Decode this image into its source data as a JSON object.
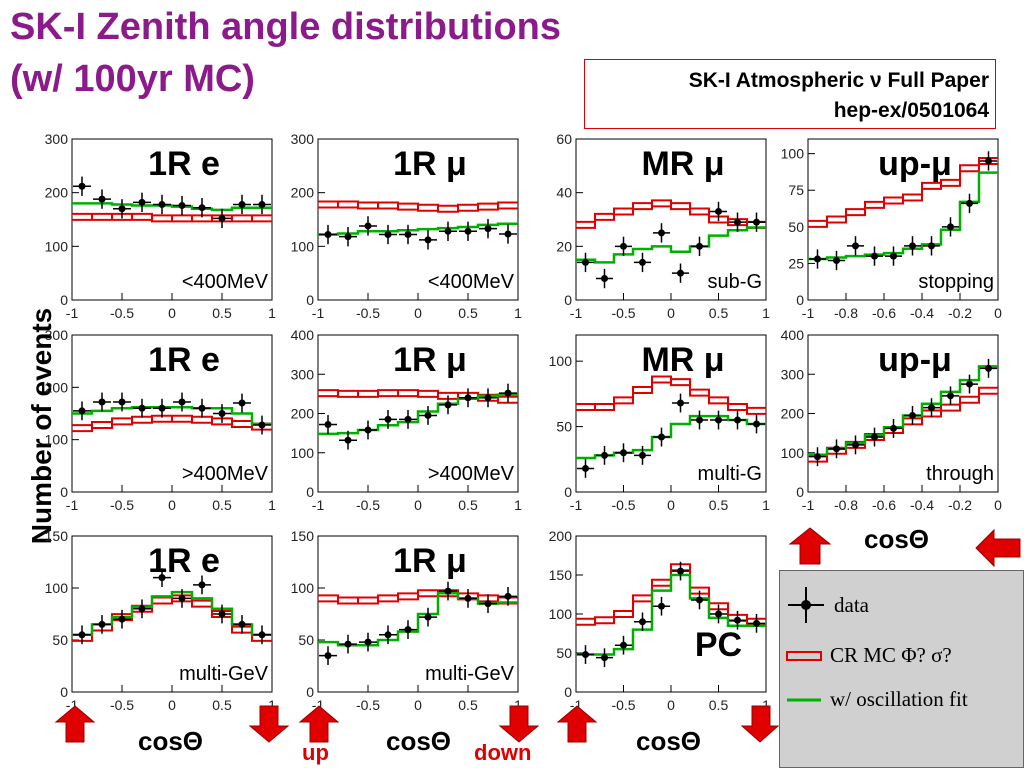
{
  "title": {
    "line1": "SK-I  Zenith angle distributions",
    "line2": "(w/ 100yr MC)"
  },
  "reference": {
    "line1": "SK-I Atmospheric ν Full Paper",
    "line2": "hep-ex/0501064"
  },
  "ylabel": "Number of events",
  "bottom_labels": {
    "cos": "cosΘ",
    "up": "up",
    "down": "down"
  },
  "legend": {
    "data": "data",
    "cr_mc": "CR MC Φ? σ?",
    "osc_fit": "w/ oscillation fit"
  },
  "colors": {
    "title": "#8b1a8b",
    "cr_mc": "#e00000",
    "osc_fit": "#00b000",
    "data": "#000000",
    "arrows": "#e00000"
  },
  "chart_data": [
    {
      "id": "p11",
      "type": "line",
      "title": "1R  e",
      "note": "<400MeV",
      "ylim": [
        0,
        300
      ],
      "yticks": [
        0,
        100,
        200,
        300
      ],
      "xlim": [
        -1,
        1
      ],
      "xticks": [
        "-1",
        "-0.5",
        "0",
        "0.5",
        "1"
      ],
      "x": [
        -0.9,
        -0.7,
        -0.5,
        -0.3,
        -0.1,
        0.1,
        0.3,
        0.5,
        0.7,
        0.9
      ],
      "series": [
        {
          "name": "data",
          "values": [
            212,
            188,
            170,
            182,
            178,
            176,
            172,
            152,
            178,
            178
          ]
        },
        {
          "name": "CR MC",
          "values": [
            155,
            155,
            155,
            155,
            152,
            152,
            152,
            152,
            152,
            152
          ]
        },
        {
          "name": "w/ oscillation fit",
          "values": [
            180,
            180,
            178,
            176,
            176,
            174,
            170,
            168,
            172,
            172
          ]
        }
      ]
    },
    {
      "id": "p12",
      "type": "line",
      "title": "1R μ",
      "note": "<400MeV",
      "ylim": [
        0,
        300
      ],
      "yticks": [
        0,
        100,
        200,
        300
      ],
      "xlim": [
        -1,
        1
      ],
      "xticks": [
        "-1",
        "-0.5",
        "0",
        "0.5",
        "1"
      ],
      "x": [
        -0.9,
        -0.7,
        -0.5,
        -0.3,
        -0.1,
        0.1,
        0.3,
        0.5,
        0.7,
        0.9
      ],
      "series": [
        {
          "name": "data",
          "values": [
            122,
            118,
            138,
            122,
            122,
            112,
            128,
            128,
            133,
            123
          ]
        },
        {
          "name": "CR MC",
          "values": [
            178,
            178,
            176,
            176,
            174,
            172,
            170,
            172,
            174,
            176
          ]
        },
        {
          "name": "w/ oscillation fit",
          "values": [
            122,
            124,
            128,
            128,
            130,
            132,
            134,
            136,
            140,
            142
          ]
        }
      ]
    },
    {
      "id": "p13",
      "type": "line",
      "title": "MR μ",
      "note": "sub-G",
      "ylim": [
        0,
        60
      ],
      "yticks": [
        0,
        20,
        40,
        60
      ],
      "xlim": [
        -1,
        1
      ],
      "xticks": [
        "-1",
        "-0.5",
        "0",
        "0.5",
        "1"
      ],
      "x": [
        -0.9,
        -0.7,
        -0.5,
        -0.3,
        -0.1,
        0.1,
        0.3,
        0.5,
        0.7,
        0.9
      ],
      "series": [
        {
          "name": "data",
          "values": [
            14,
            8,
            20,
            14,
            25,
            10,
            20,
            33,
            29,
            29
          ]
        },
        {
          "name": "CR MC",
          "values": [
            28,
            31,
            33,
            35,
            36,
            35,
            33,
            30,
            29,
            28
          ]
        },
        {
          "name": "w/ oscillation fit",
          "values": [
            15,
            14,
            17,
            19,
            20,
            18,
            20,
            24,
            26,
            27
          ]
        }
      ]
    },
    {
      "id": "p14",
      "type": "line",
      "title": "up-μ",
      "note": "stopping",
      "ylim": [
        0,
        110
      ],
      "yticks": [
        0,
        25,
        50,
        75,
        100
      ],
      "xlim": [
        -1,
        0
      ],
      "xticks": [
        "-1",
        "-0.8",
        "-0.6",
        "-0.4",
        "-0.2",
        "0"
      ],
      "x": [
        -0.95,
        -0.85,
        -0.75,
        -0.65,
        -0.55,
        -0.45,
        -0.35,
        -0.25,
        -0.15,
        -0.05
      ],
      "series": [
        {
          "name": "data",
          "values": [
            28,
            27,
            37,
            30,
            30,
            37,
            37,
            50,
            66,
            95
          ]
        },
        {
          "name": "CR MC",
          "values": [
            52,
            55,
            60,
            65,
            68,
            70,
            78,
            80,
            90,
            95
          ]
        },
        {
          "name": "w/ oscillation fit",
          "values": [
            28,
            29,
            30,
            31,
            32,
            35,
            38,
            48,
            67,
            87
          ]
        }
      ]
    },
    {
      "id": "p21",
      "type": "line",
      "title": "1R  e",
      "note": ">400MeV",
      "ylim": [
        0,
        300
      ],
      "yticks": [
        0,
        100,
        200,
        300
      ],
      "xlim": [
        -1,
        1
      ],
      "xticks": [
        "-1",
        "-0.5",
        "0",
        "0.5",
        "1"
      ],
      "x": [
        -0.9,
        -0.7,
        -0.5,
        -0.3,
        -0.1,
        0.1,
        0.3,
        0.5,
        0.7,
        0.9
      ],
      "series": [
        {
          "name": "data",
          "values": [
            155,
            172,
            172,
            160,
            160,
            172,
            160,
            150,
            170,
            128
          ]
        },
        {
          "name": "CR MC",
          "values": [
            122,
            128,
            135,
            138,
            140,
            140,
            138,
            135,
            130,
            125
          ]
        },
        {
          "name": "w/ oscillation fit",
          "values": [
            150,
            155,
            160,
            162,
            162,
            162,
            160,
            160,
            150,
            130
          ]
        }
      ]
    },
    {
      "id": "p22",
      "type": "line",
      "title": "1R μ",
      "note": ">400MeV",
      "ylim": [
        0,
        400
      ],
      "yticks": [
        0,
        100,
        200,
        300,
        400
      ],
      "xlim": [
        -1,
        1
      ],
      "xticks": [
        "-1",
        "-0.5",
        "0",
        "0.5",
        "1"
      ],
      "x": [
        -0.9,
        -0.7,
        -0.5,
        -0.3,
        -0.1,
        0.1,
        0.3,
        0.5,
        0.7,
        0.9
      ],
      "series": [
        {
          "name": "data",
          "values": [
            172,
            132,
            158,
            185,
            185,
            195,
            222,
            240,
            240,
            252
          ]
        },
        {
          "name": "CR MC",
          "values": [
            252,
            250,
            250,
            252,
            252,
            250,
            245,
            245,
            240,
            235
          ]
        },
        {
          "name": "w/ oscillation fit",
          "values": [
            148,
            150,
            158,
            170,
            178,
            205,
            225,
            238,
            245,
            248
          ]
        }
      ]
    },
    {
      "id": "p23",
      "type": "line",
      "title": "MR μ",
      "note": "multi-G",
      "ylim": [
        0,
        120
      ],
      "yticks": [
        0,
        50,
        100
      ],
      "xlim": [
        -1,
        1
      ],
      "xticks": [
        "-1",
        "-0.5",
        "0",
        "0.5",
        "1"
      ],
      "x": [
        -0.9,
        -0.7,
        -0.5,
        -0.3,
        -0.1,
        0.1,
        0.3,
        0.5,
        0.7,
        0.9
      ],
      "series": [
        {
          "name": "data",
          "values": [
            18,
            28,
            30,
            28,
            42,
            68,
            55,
            55,
            55,
            52
          ]
        },
        {
          "name": "CR MC",
          "values": [
            65,
            65,
            70,
            78,
            86,
            84,
            76,
            70,
            65,
            62
          ]
        },
        {
          "name": "w/ oscillation fit",
          "values": [
            26,
            28,
            30,
            32,
            42,
            52,
            58,
            58,
            55,
            52
          ]
        }
      ]
    },
    {
      "id": "p24",
      "type": "line",
      "title": "up-μ",
      "note": "through",
      "ylim": [
        0,
        400
      ],
      "yticks": [
        0,
        100,
        200,
        300,
        400
      ],
      "xlim": [
        -1,
        0
      ],
      "xticks": [
        "-1",
        "-0.8",
        "-0.6",
        "-0.4",
        "-0.2",
        "0"
      ],
      "x": [
        -0.95,
        -0.85,
        -0.75,
        -0.65,
        -0.55,
        -0.45,
        -0.35,
        -0.25,
        -0.15,
        -0.05
      ],
      "series": [
        {
          "name": "data",
          "values": [
            90,
            110,
            120,
            140,
            162,
            195,
            215,
            245,
            275,
            315
          ]
        },
        {
          "name": "CR MC",
          "values": [
            85,
            105,
            120,
            140,
            158,
            180,
            200,
            215,
            235,
            258
          ]
        },
        {
          "name": "w/ oscillation fit",
          "values": [
            95,
            110,
            125,
            145,
            165,
            195,
            225,
            255,
            285,
            320
          ]
        }
      ]
    },
    {
      "id": "p31",
      "type": "line",
      "title": "1R  e",
      "note": "multi-GeV",
      "ylim": [
        0,
        150
      ],
      "yticks": [
        0,
        50,
        100,
        150
      ],
      "xlim": [
        -1,
        1
      ],
      "xticks": [
        "-1",
        "-0.5",
        "0",
        "0.5",
        "1"
      ],
      "x": [
        -0.9,
        -0.7,
        -0.5,
        -0.3,
        -0.1,
        0.1,
        0.3,
        0.5,
        0.7,
        0.9
      ],
      "series": [
        {
          "name": "data",
          "values": [
            55,
            65,
            70,
            80,
            110,
            90,
            103,
            75,
            65,
            55
          ]
        },
        {
          "name": "CR MC",
          "values": [
            52,
            62,
            72,
            80,
            88,
            90,
            85,
            75,
            60,
            52
          ]
        },
        {
          "name": "w/ oscillation fit",
          "values": [
            55,
            65,
            72,
            82,
            92,
            96,
            90,
            80,
            65,
            55
          ]
        }
      ]
    },
    {
      "id": "p32",
      "type": "line",
      "title": "1R μ",
      "note": "multi-GeV",
      "ylim": [
        0,
        150
      ],
      "yticks": [
        0,
        50,
        100,
        150
      ],
      "xlim": [
        -1,
        1
      ],
      "xticks": [
        "-1",
        "-0.5",
        "0",
        "0.5",
        "1"
      ],
      "x": [
        -0.9,
        -0.7,
        -0.5,
        -0.3,
        -0.1,
        0.1,
        0.3,
        0.5,
        0.7,
        0.9
      ],
      "series": [
        {
          "name": "data",
          "values": [
            35,
            46,
            48,
            55,
            60,
            72,
            97,
            90,
            85,
            92
          ]
        },
        {
          "name": "CR MC",
          "values": [
            90,
            88,
            88,
            90,
            92,
            95,
            95,
            92,
            90,
            88
          ]
        },
        {
          "name": "w/ oscillation fit",
          "values": [
            48,
            45,
            45,
            50,
            58,
            75,
            95,
            90,
            85,
            86
          ]
        }
      ]
    },
    {
      "id": "p33",
      "type": "line",
      "title": "",
      "note": "PC",
      "ylim": [
        0,
        200
      ],
      "yticks": [
        0,
        50,
        100,
        150,
        200
      ],
      "xlim": [
        -1,
        1
      ],
      "xticks": [
        "-1",
        "-0.5",
        "0",
        "0.5",
        "1"
      ],
      "x": [
        -0.9,
        -0.7,
        -0.5,
        -0.3,
        -0.1,
        0.1,
        0.3,
        0.5,
        0.7,
        0.9
      ],
      "series": [
        {
          "name": "data",
          "values": [
            48,
            44,
            60,
            90,
            110,
            155,
            118,
            100,
            92,
            88
          ]
        },
        {
          "name": "CR MC",
          "values": [
            90,
            92,
            100,
            120,
            140,
            160,
            130,
            110,
            95,
            90
          ]
        },
        {
          "name": "w/ oscillation fit",
          "values": [
            48,
            48,
            55,
            80,
            130,
            150,
            120,
            95,
            85,
            85
          ]
        }
      ]
    }
  ]
}
